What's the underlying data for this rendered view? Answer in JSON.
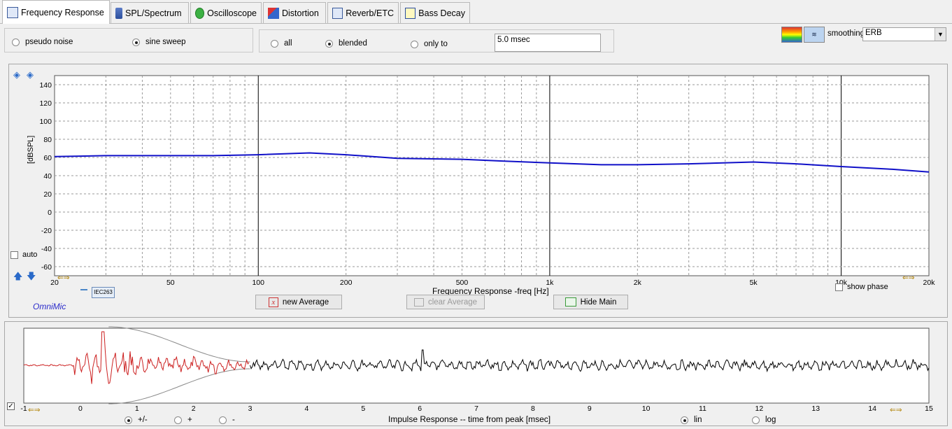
{
  "tabs": [
    {
      "label": "Frequency Response",
      "icon": "frequency-response-icon",
      "active": true
    },
    {
      "label": "SPL/Spectrum",
      "icon": "spl-meter-icon"
    },
    {
      "label": "Oscilloscope",
      "icon": "oscilloscope-icon"
    },
    {
      "label": "Distortion",
      "icon": "distortion-icon"
    },
    {
      "label": "Reverb/ETC",
      "icon": "reverb-icon"
    },
    {
      "label": "Bass Decay",
      "icon": "bass-decay-icon"
    }
  ],
  "signal": {
    "pseudo_noise": "pseudo noise",
    "sine_sweep": "sine sweep",
    "selected": "sine sweep"
  },
  "gate": {
    "all": "all",
    "blended": "blended",
    "only_to": "only to",
    "selected": "blended",
    "time_value": "5.0 msec"
  },
  "smoothing": {
    "label": "smoothing",
    "value": "ERB"
  },
  "freq_chart": {
    "yaxis_label": "[dBSPL]",
    "xaxis_label": "Frequency Response -freq [Hz]",
    "yticks": [
      "140",
      "120",
      "100",
      "80",
      "60",
      "40",
      "20",
      "0",
      "-20",
      "-40",
      "-60"
    ],
    "xticks": [
      "20",
      "50",
      "100",
      "200",
      "500",
      "1k",
      "2k",
      "5k",
      "10k",
      "20k"
    ],
    "auto_label": "auto",
    "show_phase_label": "show phase",
    "legend_tag": "IEC263",
    "brand": "OmniMic",
    "trace_color": "#1010c8"
  },
  "buttons": {
    "new_average": "new Average",
    "clear_average": "clear Average",
    "hide_main": "Hide Main"
  },
  "impulse": {
    "xaxis_label": "Impulse Response  -- time from peak [msec]",
    "xticks": [
      "-1",
      "0",
      "1",
      "2",
      "3",
      "4",
      "5",
      "6",
      "7",
      "8",
      "9",
      "10",
      "11",
      "12",
      "13",
      "14",
      "15"
    ],
    "polarity": {
      "both": "+/-",
      "plus": "+",
      "minus": "-",
      "selected": "+/-"
    },
    "scale": {
      "lin": "lin",
      "log": "log",
      "selected": "lin"
    },
    "pre_color": "#cc2020",
    "post_color": "#000000"
  },
  "chart_data": [
    {
      "type": "line",
      "title": "",
      "xlabel": "Frequency Response -freq [Hz]",
      "ylabel": "[dBSPL]",
      "xscale": "log",
      "xlim": [
        20,
        20000
      ],
      "ylim": [
        -70,
        150
      ],
      "grid": true,
      "series": [
        {
          "x": [
            20,
            30,
            50,
            70,
            100,
            150,
            200,
            300,
            500,
            700,
            1000,
            1500,
            2000,
            3000,
            5000,
            7000,
            10000,
            15000,
            20000
          ],
          "y": [
            61,
            62,
            62,
            62,
            63,
            65,
            63,
            59,
            58,
            56,
            54,
            52,
            52,
            53,
            55,
            53,
            50,
            47,
            44
          ]
        }
      ]
    },
    {
      "type": "line",
      "title": "",
      "xlabel": "Impulse Response  -- time from peak [msec]",
      "ylabel": "",
      "xlim": [
        -1,
        15
      ],
      "grid": false
    }
  ]
}
